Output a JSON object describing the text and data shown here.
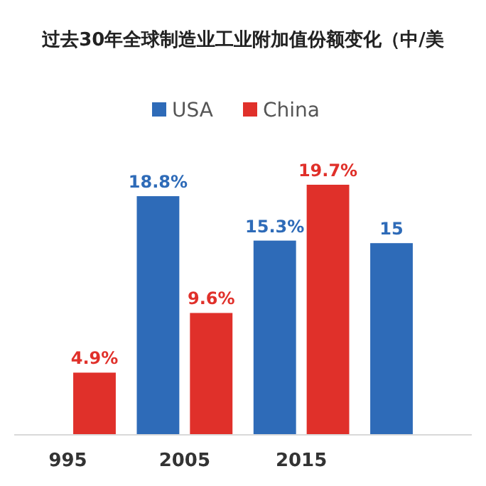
{
  "chart_data": {
    "type": "bar",
    "title": "过去30年全球制造业工业附加值份额变化（中/美",
    "categories": [
      "995",
      "2005",
      "2015",
      null
    ],
    "series": [
      {
        "name": "USA",
        "color": "#2e6bb8",
        "values": [
          null,
          18.8,
          15.3,
          15.1
        ],
        "value_labels": [
          null,
          "18.8%",
          "15.3%",
          "15"
        ]
      },
      {
        "name": "China",
        "color": "#e0302a",
        "values": [
          4.9,
          9.6,
          19.7,
          null
        ],
        "value_labels": [
          "4.9%",
          "9.6%",
          "19.7%",
          null
        ]
      }
    ],
    "legend": "top"
  }
}
